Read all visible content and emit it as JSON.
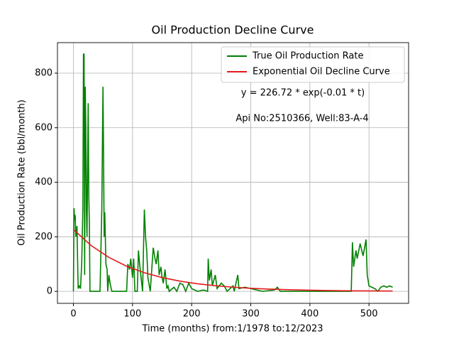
{
  "chart_data": {
    "type": "line",
    "title": "Oil Production Decline Curve",
    "xlabel": "Time (months) from:1/1978 to:12/2023",
    "ylabel": "Oil Production Rate (bbl/month)",
    "annotations": [
      "y = 226.72 * exp(-0.01 * t)",
      "Api No:2510366, Well:83-A-4"
    ],
    "xlim": [
      -27,
      567
    ],
    "xticks": [
      0,
      100,
      200,
      300,
      400,
      500
    ],
    "ylim": [
      -44,
      912
    ],
    "yticks": [
      0,
      200,
      400,
      600,
      800
    ],
    "grid": true,
    "legend": "upper right",
    "series": [
      {
        "name": "True Oil Production Rate",
        "color": "#008000",
        "x": [
          0,
          1,
          2,
          3,
          4,
          6,
          7,
          8,
          10,
          12,
          14,
          16,
          17,
          18,
          19,
          20,
          21,
          22,
          23,
          24,
          25,
          26,
          27,
          28,
          30,
          45,
          48,
          50,
          51,
          52,
          53,
          55,
          57,
          58,
          60,
          62,
          65,
          90,
          92,
          95,
          97,
          100,
          102,
          104,
          108,
          110,
          112,
          115,
          117,
          120,
          122,
          124,
          126,
          130,
          135,
          138,
          140,
          143,
          145,
          148,
          150,
          152,
          155,
          158,
          160,
          162,
          170,
          175,
          180,
          185,
          190,
          195,
          200,
          210,
          220,
          227,
          228,
          230,
          233,
          235,
          240,
          243,
          250,
          255,
          260,
          270,
          272,
          278,
          280,
          290,
          300,
          320,
          340,
          345,
          350,
          400,
          470,
          472,
          474,
          478,
          480,
          485,
          490,
          495,
          497,
          500,
          505,
          510,
          515,
          520,
          525,
          530,
          535,
          540
        ],
        "values": [
          0,
          305,
          260,
          280,
          200,
          240,
          125,
          10,
          20,
          10,
          100,
          300,
          870,
          870,
          60,
          750,
          600,
          300,
          200,
          450,
          690,
          350,
          250,
          0,
          0,
          0,
          300,
          750,
          500,
          200,
          290,
          100,
          80,
          0,
          60,
          30,
          0,
          0,
          100,
          80,
          120,
          50,
          120,
          0,
          0,
          150,
          100,
          40,
          0,
          300,
          200,
          150,
          50,
          0,
          160,
          120,
          100,
          150,
          60,
          90,
          50,
          30,
          80,
          10,
          20,
          0,
          15,
          0,
          30,
          25,
          0,
          30,
          10,
          0,
          5,
          0,
          120,
          40,
          80,
          20,
          60,
          10,
          30,
          20,
          0,
          20,
          0,
          60,
          10,
          15,
          10,
          0,
          5,
          15,
          0,
          0,
          0,
          180,
          90,
          150,
          120,
          175,
          130,
          190,
          60,
          20,
          15,
          10,
          0,
          15,
          20,
          15,
          20,
          15
        ]
      },
      {
        "name": "Exponential Oil Decline Curve",
        "color": "#e41a1c",
        "x": [
          0,
          30,
          60,
          90,
          120,
          150,
          180,
          210,
          240,
          270,
          300,
          330,
          360,
          390,
          420,
          450,
          480,
          510,
          540
        ],
        "values": [
          226.72,
          167.96,
          124.43,
          92.18,
          68.29,
          50.59,
          37.48,
          27.76,
          20.57,
          15.24,
          11.29,
          8.36,
          6.2,
          4.59,
          3.4,
          2.52,
          1.87,
          1.38,
          1.02
        ]
      }
    ]
  }
}
